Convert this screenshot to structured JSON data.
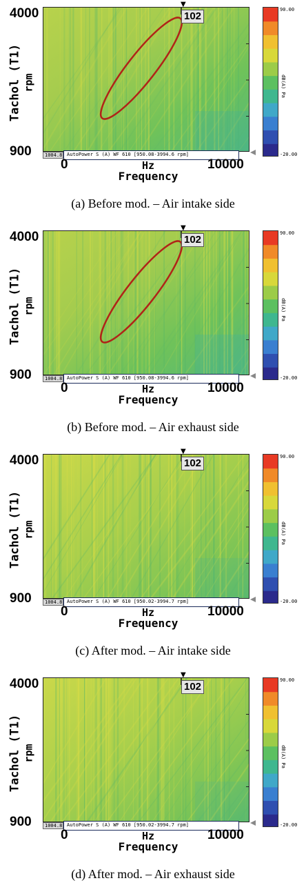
{
  "panels": [
    {
      "caption": "(a) Before mod. – Air intake side",
      "y_title": "Tachol (T1)",
      "y_unit": "rpm",
      "y_ticks": [
        "4000",
        "900"
      ],
      "x_title": "Frequency",
      "x_unit": "Hz",
      "x_ticks": [
        "0",
        "10000"
      ],
      "cursor_value": "102",
      "legend": "AutoPower S (A) WF 610 [950.08-3994.6 rpm]",
      "rpm_readout": "1004.8",
      "colorbar": {
        "max": "90.00",
        "min": "-20.00",
        "unit": "dB(A) Pa"
      },
      "has_ellipse": true,
      "tone": "before"
    },
    {
      "caption": "(b) Before mod. – Air exhaust side",
      "y_title": "Tachol (T1)",
      "y_unit": "rpm",
      "y_ticks": [
        "4000",
        "900"
      ],
      "x_title": "Frequency",
      "x_unit": "Hz",
      "x_ticks": [
        "0",
        "10000"
      ],
      "cursor_value": "102",
      "legend": "AutoPower S (A) WF 610 [950.08-3994.6 rpm]",
      "rpm_readout": "1004.8",
      "colorbar": {
        "max": "90.00",
        "min": "-20.00",
        "unit": "dB(A) Pa"
      },
      "has_ellipse": true,
      "tone": "before"
    },
    {
      "caption": "(c) After mod. – Air intake side",
      "y_title": "Tachol (T1)",
      "y_unit": "rpm",
      "y_ticks": [
        "4000",
        "900"
      ],
      "x_title": "Frequency",
      "x_unit": "Hz",
      "x_ticks": [
        "0",
        "10000"
      ],
      "cursor_value": "102",
      "legend": "AutoPower S (A) WF 610 [950.02-3994.7 rpm]",
      "rpm_readout": "1004.8",
      "colorbar": {
        "max": "90.00",
        "min": "-20.00",
        "unit": "dB(A) Pa"
      },
      "has_ellipse": false,
      "tone": "after"
    },
    {
      "caption": "(d) After mod. – Air exhaust side",
      "y_title": "Tachol (T1)",
      "y_unit": "rpm",
      "y_ticks": [
        "4000",
        "900"
      ],
      "x_title": "Frequency",
      "x_unit": "Hz",
      "x_ticks": [
        "0",
        "10000"
      ],
      "cursor_value": "102",
      "legend": "AutoPower S (A) WF 610 [950.02-3994.7 rpm]",
      "rpm_readout": "1004.8",
      "colorbar": {
        "max": "90.00",
        "min": "-20.00",
        "unit": "dB(A) Pa"
      },
      "has_ellipse": false,
      "tone": "after"
    }
  ],
  "colors": {
    "colormap": [
      "#2b2a8c",
      "#2f4fb0",
      "#3a7fd0",
      "#40a8c8",
      "#3fb78f",
      "#5cc060",
      "#9ccc48",
      "#d8d83a",
      "#f0c030",
      "#f08a28",
      "#e83a24"
    ],
    "ellipse": "#b02418",
    "plot_base_green": "#6fc25a",
    "plot_base_yellow": "#c8d848"
  },
  "chart_data": [
    {
      "type": "heatmap",
      "title": "",
      "xlabel": "Frequency",
      "ylabel": "Tachol (T1)",
      "x_unit": "Hz",
      "y_unit": "rpm",
      "xlim": [
        0,
        10000
      ],
      "ylim": [
        900,
        4000
      ],
      "zlim": [
        -20,
        90
      ],
      "z_unit": "dB(A) Pa",
      "highlight": "order ellipse",
      "series": []
    },
    {
      "type": "heatmap",
      "title": "",
      "xlabel": "Frequency",
      "ylabel": "Tachol (T1)",
      "x_unit": "Hz",
      "y_unit": "rpm",
      "xlim": [
        0,
        10000
      ],
      "ylim": [
        900,
        4000
      ],
      "zlim": [
        -20,
        90
      ],
      "z_unit": "dB(A) Pa",
      "highlight": "order ellipse",
      "series": []
    },
    {
      "type": "heatmap",
      "title": "",
      "xlabel": "Frequency",
      "ylabel": "Tachol (T1)",
      "x_unit": "Hz",
      "y_unit": "rpm",
      "xlim": [
        0,
        10000
      ],
      "ylim": [
        900,
        4000
      ],
      "zlim": [
        -20,
        90
      ],
      "z_unit": "dB(A) Pa",
      "series": []
    },
    {
      "type": "heatmap",
      "title": "",
      "xlabel": "Frequency",
      "ylabel": "Tachol (T1)",
      "x_unit": "Hz",
      "y_unit": "rpm",
      "xlim": [
        0,
        10000
      ],
      "ylim": [
        900,
        4000
      ],
      "zlim": [
        -20,
        90
      ],
      "z_unit": "dB(A) Pa",
      "series": []
    }
  ]
}
